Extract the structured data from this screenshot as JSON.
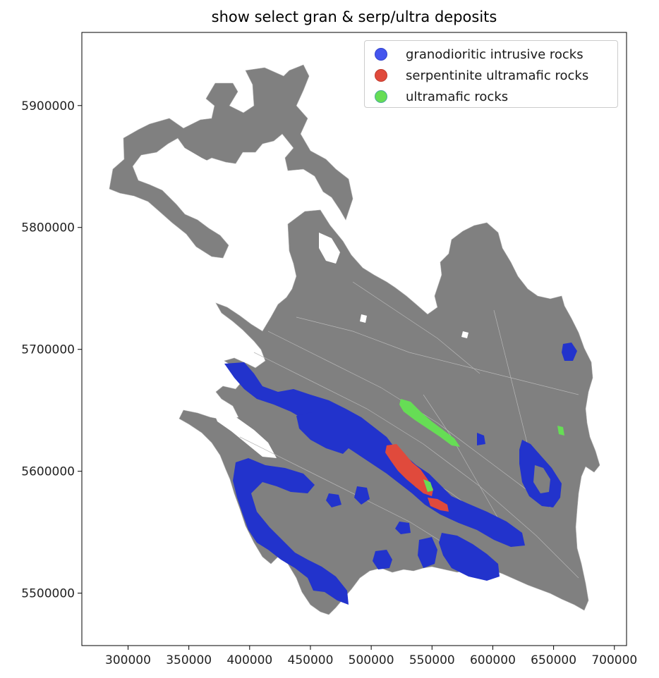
{
  "title": "show select gran & serp/ultra deposits",
  "colors": {
    "base": "#808080",
    "granodioritic": "#2233cc",
    "serpentinite": "#e04a3c",
    "ultramafic": "#66dd55"
  },
  "legend": [
    {
      "label": "granodioritic intrusive rocks",
      "color": "#4455ee"
    },
    {
      "label": "serpentinite ultramafic rocks",
      "color": "#e04a3c"
    },
    {
      "label": "ultramafic rocks",
      "color": "#66dd55"
    }
  ],
  "x_axis": {
    "ticks": [
      300000,
      350000,
      400000,
      450000,
      500000,
      550000,
      600000,
      650000,
      700000
    ],
    "range": [
      262000,
      710000
    ]
  },
  "y_axis": {
    "ticks": [
      5500000,
      5600000,
      5700000,
      5800000,
      5900000
    ],
    "range": [
      5457000,
      5960000
    ]
  }
}
